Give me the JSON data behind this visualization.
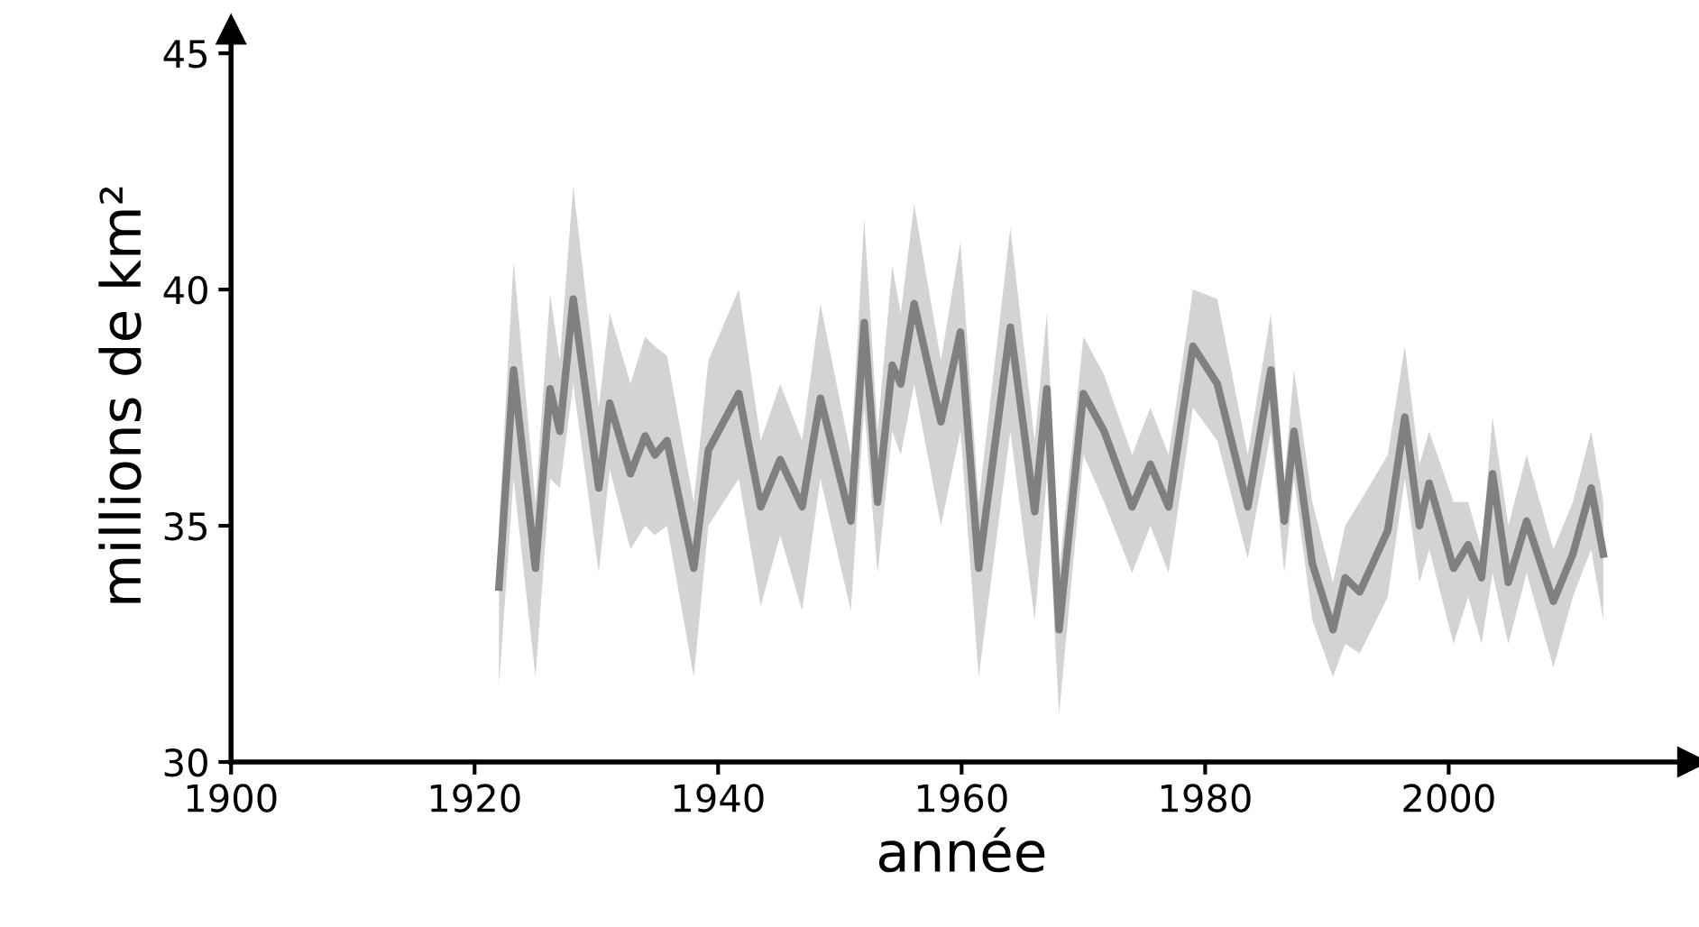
{
  "chart_data": {
    "type": "line",
    "xlabel": "année",
    "ylabel": "millions de km²",
    "xlim": [
      1900,
      2020
    ],
    "ylim": [
      30,
      45.5
    ],
    "xticks": [
      1900,
      1920,
      1940,
      1960,
      1980,
      2000
    ],
    "yticks": [
      30,
      35,
      40,
      45
    ],
    "grid": false,
    "line_style": "solid",
    "series": [
      {
        "color": "#808080",
        "x": [
          1922.0,
          1923.2,
          1925.0,
          1926.2,
          1927.0,
          1928.1,
          1930.2,
          1931.1,
          1932.8,
          1934.0,
          1934.8,
          1935.8,
          1938.0,
          1939.2,
          1941.7,
          1943.5,
          1945.1,
          1946.9,
          1948.4,
          1950.9,
          1952.0,
          1953.1,
          1954.3,
          1955.0,
          1956.1,
          1958.3,
          1959.9,
          1961.4,
          1964.0,
          1966.0,
          1967.0,
          1968.0,
          1970.0,
          1971.7,
          1974.0,
          1975.5,
          1977.0,
          1979.0,
          1981.0,
          1983.5,
          1985.4,
          1986.5,
          1987.3,
          1988.8,
          1990.5,
          1991.5,
          1992.7,
          1995.0,
          1996.4,
          1997.6,
          1998.4,
          2000.4,
          2001.6,
          2002.7,
          2003.6,
          2004.9,
          2006.4,
          2008.6,
          2010.2,
          2011.7,
          2012.7
        ],
        "values": [
          33.7,
          38.3,
          34.1,
          37.9,
          37.0,
          39.8,
          35.8,
          37.6,
          36.1,
          36.9,
          36.5,
          36.8,
          34.1,
          36.6,
          37.8,
          35.4,
          36.4,
          35.4,
          37.7,
          35.1,
          39.3,
          35.5,
          38.4,
          38.0,
          39.7,
          37.2,
          39.1,
          34.1,
          39.2,
          35.3,
          37.9,
          32.8,
          37.8,
          37.0,
          35.4,
          36.3,
          35.4,
          38.8,
          38.0,
          35.4,
          38.3,
          35.1,
          37.0,
          34.2,
          32.8,
          33.9,
          33.6,
          34.9,
          37.3,
          35.0,
          35.9,
          34.1,
          34.6,
          33.9,
          36.1,
          33.8,
          35.1,
          33.4,
          34.4,
          35.8,
          34.4
        ],
        "lower": [
          31.6,
          36.0,
          31.8,
          36.0,
          35.8,
          38.0,
          34.0,
          36.2,
          34.5,
          35.0,
          34.8,
          35.0,
          31.8,
          35.0,
          36.0,
          33.3,
          34.8,
          33.2,
          36.0,
          33.2,
          37.5,
          34.0,
          37.0,
          36.5,
          38.0,
          35.0,
          37.0,
          31.8,
          37.0,
          33.0,
          36.0,
          31.0,
          36.5,
          35.5,
          34.0,
          35.0,
          34.0,
          37.5,
          36.8,
          34.3,
          37.0,
          34.0,
          36.0,
          33.0,
          31.8,
          32.5,
          32.3,
          33.5,
          36.0,
          33.8,
          34.5,
          32.5,
          33.5,
          32.5,
          34.0,
          32.5,
          34.0,
          32.0,
          33.5,
          34.5,
          33.0
        ],
        "upper": [
          35.0,
          40.6,
          35.5,
          39.9,
          38.5,
          42.2,
          37.5,
          39.5,
          38.0,
          39.0,
          38.8,
          38.6,
          35.5,
          38.5,
          40.0,
          36.8,
          38.0,
          36.8,
          39.7,
          36.5,
          41.5,
          37.0,
          40.5,
          39.5,
          41.8,
          38.5,
          41.0,
          35.5,
          41.3,
          36.8,
          39.5,
          34.0,
          39.0,
          38.2,
          36.5,
          37.5,
          36.5,
          40.0,
          39.8,
          36.5,
          39.5,
          36.0,
          38.3,
          35.5,
          33.8,
          35.0,
          35.5,
          36.5,
          38.8,
          36.3,
          37.0,
          35.5,
          35.5,
          34.5,
          37.3,
          35.0,
          36.5,
          34.5,
          35.5,
          37.0,
          35.5
        ]
      }
    ]
  }
}
